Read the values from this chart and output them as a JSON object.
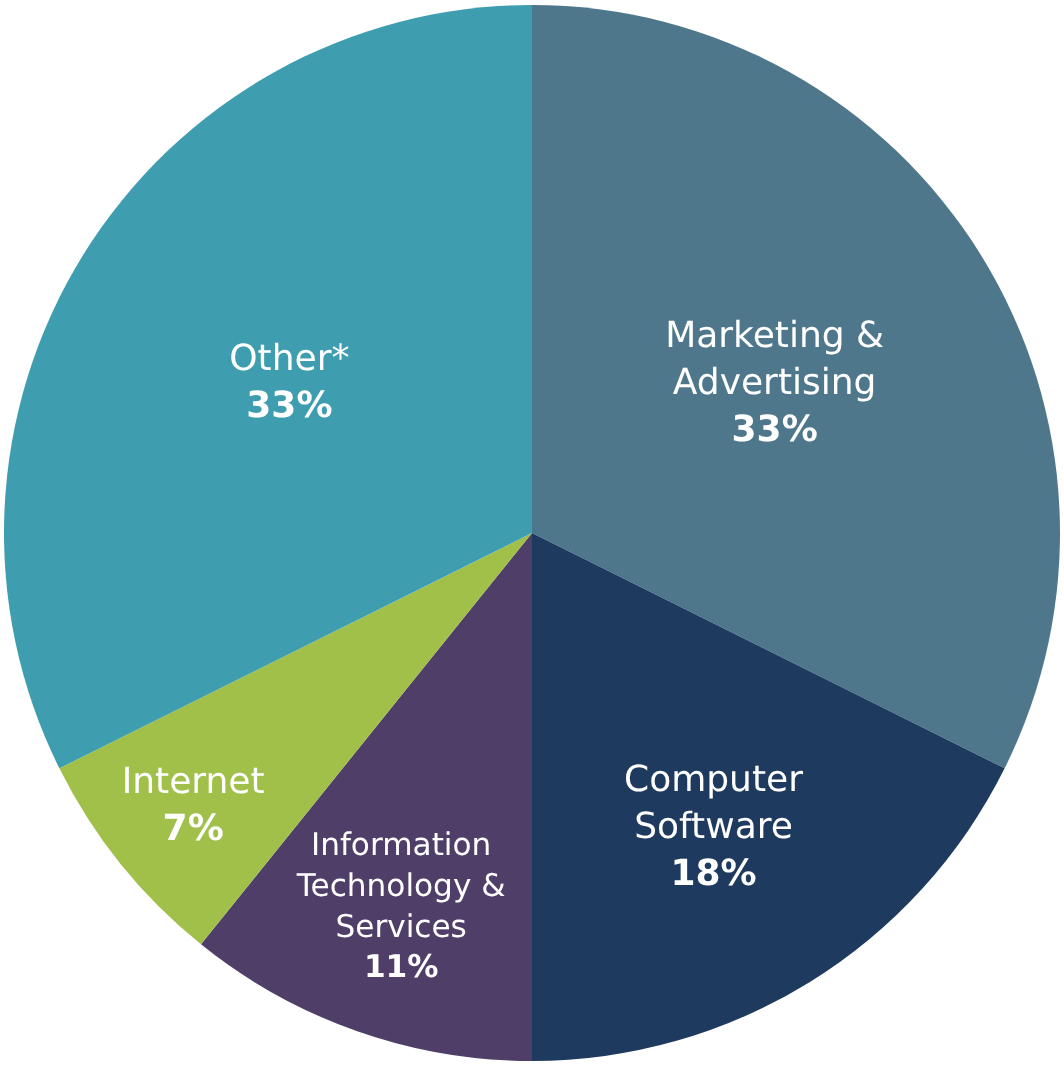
{
  "chart_data": {
    "type": "pie",
    "categories": [
      "Marketing & Advertising",
      "Computer Software",
      "Information Technology & Services",
      "Internet",
      "Other*"
    ],
    "values": [
      33,
      18,
      11,
      7,
      33
    ],
    "value_labels": [
      "33%",
      "18%",
      "11%",
      "7%",
      "33%"
    ],
    "colors": [
      "#4e778c",
      "#1e3a5f",
      "#4f3f68",
      "#a0c04a",
      "#3f9db0"
    ],
    "legend": false
  }
}
